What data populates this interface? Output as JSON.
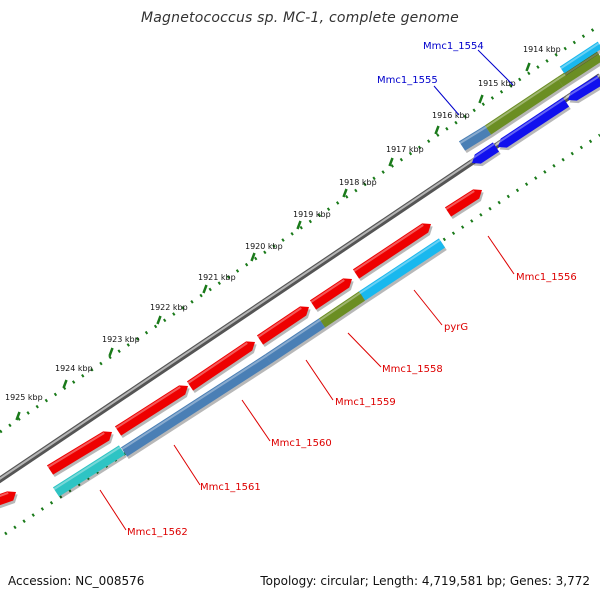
{
  "title": "Magnetococcus sp. MC-1, complete genome",
  "footer": {
    "accession": "Accession: NC_008576",
    "topology": "Topology: circular; Length: 4,719,581 bp; Genes: 3,772"
  },
  "ticks": [
    {
      "label": "1914 kbp"
    },
    {
      "label": "1915 kbp"
    },
    {
      "label": "1916 kbp"
    },
    {
      "label": "1917 kbp"
    },
    {
      "label": "1918 kbp"
    },
    {
      "label": "1919 kbp"
    },
    {
      "label": "1920 kbp"
    },
    {
      "label": "1921 kbp"
    },
    {
      "label": "1922 kbp"
    },
    {
      "label": "1923 kbp"
    },
    {
      "label": "1924 kbp"
    },
    {
      "label": "1925 kbp"
    }
  ],
  "genes": [
    {
      "label": "Mmc1_1554",
      "color": "#0000cc"
    },
    {
      "label": "Mmc1_1555",
      "color": "#0000cc"
    },
    {
      "label": "Mmc1_1556",
      "color": "#cc0000"
    },
    {
      "label": "pyrG",
      "color": "#cc0000"
    },
    {
      "label": "Mmc1_1558",
      "color": "#cc0000"
    },
    {
      "label": "Mmc1_1559",
      "color": "#cc0000"
    },
    {
      "label": "Mmc1_1560",
      "color": "#cc0000"
    },
    {
      "label": "Mmc1_1561",
      "color": "#cc0000"
    },
    {
      "label": "Mmc1_1562",
      "color": "#cc0000"
    }
  ],
  "colors": {
    "backbone": "#8c8c8c",
    "tick_dots": "#1a7a1a",
    "forward_gene": "#ee0000",
    "cog_steelblue": "#4a7fb5",
    "cog_cyan": "#19b8ee",
    "cog_olive": "#6b8e23",
    "cog_teal": "#2ec4c4",
    "cog_blue": "#1010ee"
  }
}
